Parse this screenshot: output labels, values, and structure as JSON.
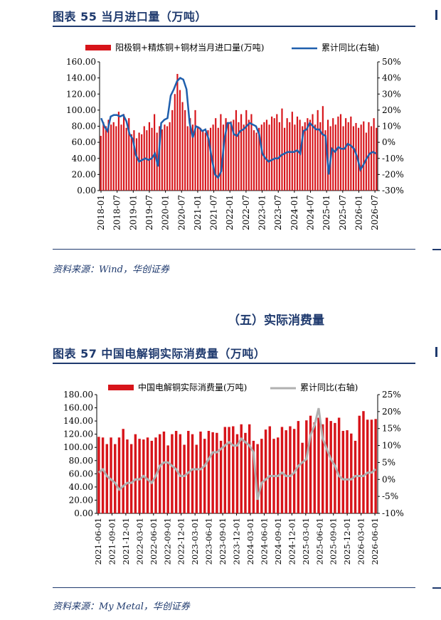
{
  "figure55": {
    "title": "图表 55    当月进口量（万吨）",
    "source": "资料来源：Wind，华创证券"
  },
  "section": {
    "heading": "（五）实际消费量"
  },
  "figure57": {
    "title": "图表 57    中国电解铜实际消费量（万吨）",
    "source": "资料来源：My Metal，华创证券"
  },
  "chart_data": [
    {
      "type": "bar",
      "title": "",
      "legend_position": "top",
      "x_ticks": [
        "2018-01",
        "2018-07",
        "2019-01",
        "2019-07",
        "2020-01",
        "2020-07",
        "2021-01",
        "2021-07",
        "2022-01",
        "2022-07",
        "2023-01",
        "2023-07",
        "2024-01",
        "2024-07",
        "2025-01",
        "2025-07",
        "2026-01",
        "2026-07"
      ],
      "ylim": [
        0,
        160
      ],
      "y_ticks": [
        "0.00",
        "20.00",
        "40.00",
        "60.00",
        "80.00",
        "100.00",
        "120.00",
        "140.00",
        "160.00"
      ],
      "y2lim": [
        -30,
        50
      ],
      "y2_ticks": [
        "-30%",
        "-20%",
        "-10%",
        "0%",
        "10%",
        "20%",
        "30%",
        "40%",
        "50%"
      ],
      "series": [
        {
          "name": "阳极铜+精炼铜+铜材当月进口量(万吨)",
          "kind": "bar",
          "axis": "left",
          "color": "#d7141a",
          "values": [
            68,
            85,
            80,
            88,
            82,
            85,
            80,
            98,
            82,
            95,
            78,
            90,
            70,
            75,
            65,
            72,
            70,
            80,
            75,
            85,
            78,
            95,
            72,
            80,
            76,
            82,
            80,
            85,
            100,
            120,
            145,
            125,
            110,
            100,
            80,
            90,
            82,
            100,
            80,
            78,
            75,
            72,
            75,
            78,
            82,
            90,
            78,
            95,
            82,
            90,
            85,
            86,
            88,
            100,
            85,
            95,
            82,
            100,
            88,
            95,
            75,
            72,
            78,
            82,
            85,
            88,
            82,
            92,
            90,
            95,
            85,
            102,
            78,
            90,
            85,
            98,
            82,
            92,
            88,
            80,
            85,
            90,
            88,
            95,
            82,
            100,
            85,
            105,
            75,
            88,
            80,
            90,
            82,
            92,
            95,
            80,
            90,
            85,
            92,
            80,
            84,
            78,
            82,
            86,
            72,
            85,
            80,
            90,
            78
          ]
        },
        {
          "name": "累计同比(右轴)",
          "kind": "line",
          "axis": "right",
          "color": "#1f5fad",
          "values": [
            15,
            10,
            7,
            16,
            17,
            17,
            16,
            17,
            13,
            5,
            2,
            -8,
            -12,
            -11,
            -10,
            -11,
            -10,
            -7,
            -15,
            12,
            14,
            15,
            29,
            33,
            38,
            40,
            39,
            33,
            12,
            3,
            10,
            9,
            7,
            8,
            2,
            -10,
            -20,
            -22,
            -18,
            2,
            12,
            12,
            5,
            4,
            7,
            8,
            10,
            12,
            11,
            10,
            5,
            -7,
            -10,
            -12,
            -11,
            -10,
            -10,
            -8,
            -7,
            -6,
            -6,
            -6,
            -5,
            -7,
            7,
            8,
            12,
            10,
            8,
            8,
            5,
            4,
            -20,
            -4,
            -6,
            -3,
            -4,
            -4,
            -1,
            -2,
            -4,
            -9,
            -17,
            -14,
            -10,
            -7,
            -6,
            -7
          ]
        }
      ]
    },
    {
      "type": "bar",
      "title": "",
      "legend_position": "top",
      "x_ticks": [
        "2021-06-01",
        "2021-09-01",
        "2021-12-01",
        "2022-03-01",
        "2022-06-01",
        "2022-09-01",
        "2022-12-01",
        "2023-03-01",
        "2023-06-01",
        "2023-09-01",
        "2023-12-01",
        "2024-03-01",
        "2024-06-01",
        "2024-09-01",
        "2024-12-01",
        "2025-03-01",
        "2025-06-01",
        "2025-09-01",
        "2025-12-01",
        "2026-03-01",
        "2026-06-01"
      ],
      "ylim": [
        0,
        180
      ],
      "y_ticks": [
        "0.00",
        "20.00",
        "40.00",
        "60.00",
        "80.00",
        "100.00",
        "120.00",
        "140.00",
        "160.00",
        "180.00"
      ],
      "y2lim": [
        -10,
        25
      ],
      "y2_ticks": [
        "-10%",
        "-5%",
        "0%",
        "5%",
        "10%",
        "15%",
        "20%",
        "25%"
      ],
      "series": [
        {
          "name": "中国电解铜实际消费量(万吨)",
          "kind": "bar",
          "axis": "left",
          "color": "#d7141a",
          "values": [
            116,
            115,
            105,
            115,
            105,
            115,
            128,
            112,
            105,
            120,
            113,
            112,
            115,
            110,
            115,
            120,
            124,
            103,
            120,
            125,
            120,
            104,
            125,
            120,
            104,
            124,
            113,
            125,
            123,
            122,
            110,
            131,
            131,
            132,
            120,
            135,
            122,
            135,
            110,
            105,
            113,
            127,
            132,
            113,
            115,
            131,
            126,
            132,
            128,
            140,
            107,
            141,
            148,
            138,
            145,
            135,
            145,
            140,
            137,
            145,
            125,
            126,
            121,
            110,
            148,
            155,
            142,
            142,
            143
          ]
        },
        {
          "name": "累计同比(右轴)",
          "kind": "line",
          "axis": "right",
          "color": "#b0b0b0",
          "values": [
            2,
            3,
            1,
            0,
            -1,
            -3,
            -2,
            -1,
            -1,
            0,
            0,
            1,
            0,
            -1,
            1,
            4,
            5,
            5,
            4,
            3,
            1,
            1,
            2,
            3,
            3,
            3,
            4,
            6,
            8,
            8,
            9,
            10,
            11,
            10,
            10,
            12,
            11,
            10,
            8,
            -6,
            -1,
            0,
            1,
            1,
            1,
            2,
            1,
            1,
            2,
            4,
            5,
            6,
            13,
            16,
            21,
            12,
            9,
            6,
            4,
            1,
            0,
            0,
            0,
            1,
            1,
            1,
            2,
            2,
            3
          ]
        }
      ]
    }
  ]
}
